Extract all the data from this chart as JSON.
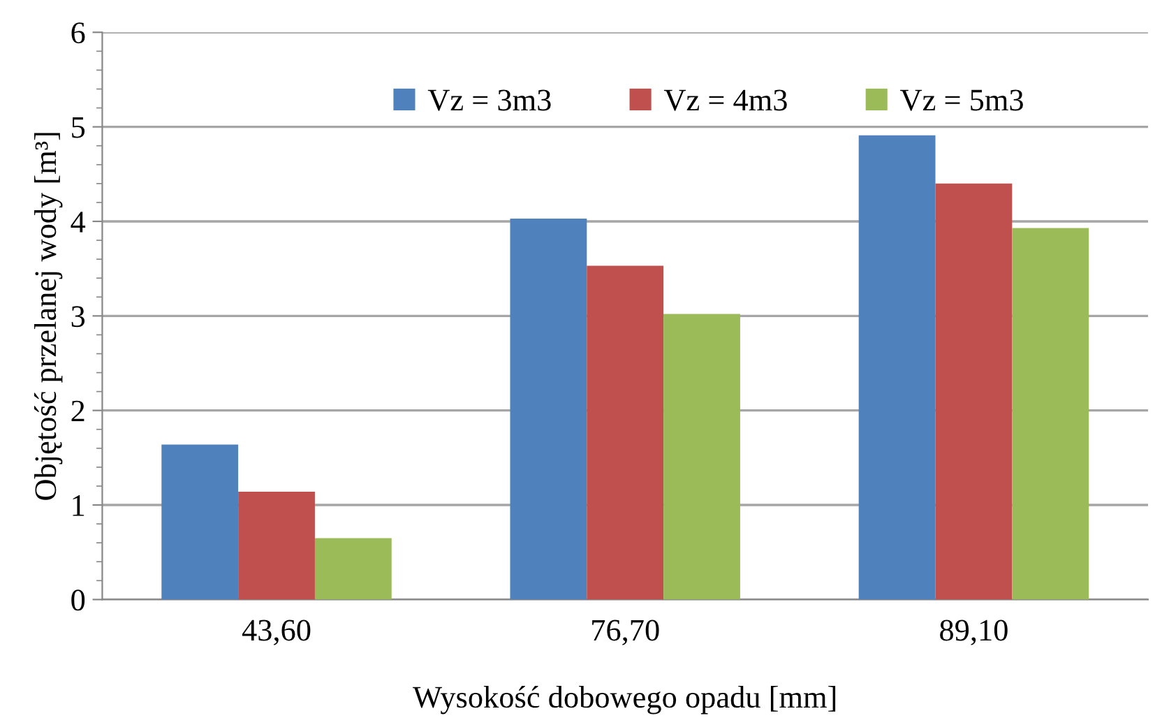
{
  "chart_data": {
    "type": "bar",
    "xlabel": "Wysokość dobowego opadu [mm]",
    "ylabel": "Objętość przelanej wody [m³]",
    "categories": [
      "43,60",
      "76,70",
      "89,10"
    ],
    "series": [
      {
        "name": "Vz = 3m3",
        "color": "#4f81bd",
        "values": [
          1.64,
          4.03,
          4.91
        ]
      },
      {
        "name": "Vz = 4m3",
        "color": "#c0504d",
        "values": [
          1.14,
          3.53,
          4.4
        ]
      },
      {
        "name": "Vz = 5m3",
        "color": "#9bbb59",
        "values": [
          0.65,
          3.02,
          3.93
        ]
      }
    ],
    "ylim": [
      0,
      6
    ],
    "yticks": [
      0,
      1,
      2,
      3,
      4,
      5,
      6
    ],
    "grid": "y",
    "legend": "top"
  }
}
